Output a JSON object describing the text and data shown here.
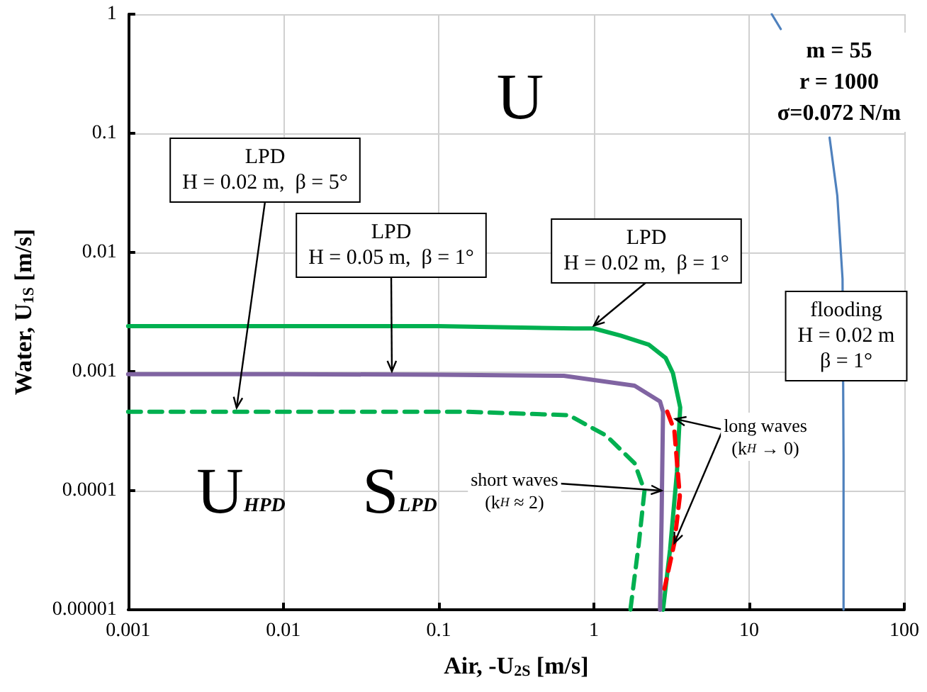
{
  "chart_data": {
    "type": "line",
    "log": "xy",
    "grid": true,
    "marker": "none",
    "xlabel": "Air, -U$_{2S}$ [m/s]",
    "ylabel": "Water, U$_{1S}$ [m/s]",
    "xlim": [
      0.001,
      100
    ],
    "xticks": [
      0.001,
      0.01,
      0.1,
      1,
      10,
      100
    ],
    "ylim": [
      1e-05,
      1
    ],
    "yticks": [
      {
        "value": 1e-05,
        "label": "0.00001"
      },
      0.0001,
      0.001,
      0.01,
      0.1,
      1
    ],
    "series": [
      {
        "color": "#00b050",
        "line_style": "solid",
        "x": [
          0.001,
          0.01,
          0.1,
          0.75,
          1,
          1.49,
          2.26,
          2.9,
          3.23,
          3.6,
          3.43,
          3.1,
          2.79
        ],
        "values": [
          0.0024,
          0.0024,
          0.0024,
          0.0023,
          0.0023,
          0.002,
          0.00168,
          0.0013,
          0.00097,
          0.0005,
          0.000143,
          3.24e-05,
          1e-05
        ]
      },
      {
        "color": "#8064a2",
        "line_style": "solid",
        "x": [
          0.001,
          0.01,
          0.1,
          0.64,
          1.83,
          2.67,
          2.79,
          2.73,
          2.67
        ],
        "values": [
          0.00095,
          0.00095,
          0.00094,
          0.00092,
          0.00076,
          0.00056,
          0.00046,
          5.63e-05,
          1e-05
        ]
      },
      {
        "color": "#00b050",
        "line_style": "dashed",
        "x": [
          0.001,
          0.01,
          0.15,
          0.69,
          1.2,
          1.83,
          2.12,
          1.95,
          1.72
        ],
        "values": [
          0.00046,
          0.00046,
          0.00046,
          0.00043,
          0.00029,
          0.00017,
          0.0001,
          3.63e-05,
          1e-05
        ]
      },
      {
        "color": "#ff0000",
        "line_style": "dashed",
        "x": [
          2.97,
          3.3,
          3.58,
          3.3,
          2.85
        ],
        "values": [
          0.00046,
          0.00032,
          8.97e-05,
          3.63e-05,
          1.5e-05
        ]
      },
      {
        "color": "#4f81bd",
        "line_style": "solid",
        "x": [
          14,
          16,
          22,
          28,
          33,
          37,
          40,
          40.6,
          40.6
        ],
        "values": [
          1,
          0.75,
          null,
          null,
          0.092,
          0.03,
          0.006,
          0.0002,
          1e-05
        ]
      }
    ],
    "annotations": [
      "U",
      "U$_{HPD}$",
      "S$_{LPD}$",
      {
        "text": "LPD\nH = 0.02 m,  β = 5°",
        "x": 0.005,
        "y": 0.00047
      },
      {
        "text": "LPD\nH = 0.05 m,  β = 1°",
        "x": 0.05,
        "y": 0.00095
      },
      {
        "text": "LPD\nH = 0.02 m,  β = 1°",
        "x": 1,
        "y": 0.0023
      },
      "m = 55\nr = 1000\nσ=0.072 N/m",
      "flooding\nH = 0.02 m\nβ = 1°",
      {
        "text": "short waves\n(k$_{H}$ ≈ 2)",
        "x": 2.73,
        "y": 0.0001
      },
      {
        "text": "long waves\n(k$_{H}$ → 0)",
        "x": 3.35,
        "y": 0.0004
      }
    ]
  }
}
